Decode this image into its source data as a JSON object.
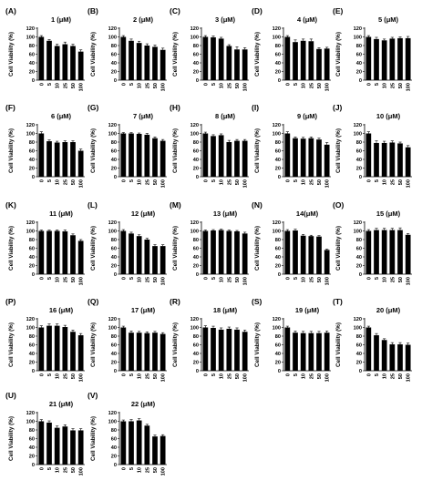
{
  "chart_data": [
    {
      "panel": "(A)",
      "type": "bar",
      "title": "1 (μM)",
      "ylabel": "Cell Viability (%)",
      "categories": [
        "0",
        "5",
        "10",
        "25",
        "50",
        "100"
      ],
      "values": [
        100,
        91,
        79,
        83,
        79,
        66
      ],
      "errors": [
        3,
        3,
        4,
        5,
        4,
        4
      ],
      "yticks": [
        "0",
        "20",
        "40",
        "60",
        "80",
        "100",
        "120"
      ],
      "ylim": [
        0,
        120
      ]
    },
    {
      "panel": "(B)",
      "type": "bar",
      "title": "2 (μM)",
      "ylabel": "Cell Viability (%)",
      "categories": [
        "0",
        "5",
        "10",
        "25",
        "50",
        "100"
      ],
      "values": [
        100,
        91,
        86,
        80,
        77,
        70
      ],
      "errors": [
        3,
        4,
        4,
        4,
        4,
        4
      ],
      "yticks": [
        "0",
        "20",
        "40",
        "60",
        "80",
        "100",
        "120"
      ],
      "ylim": [
        0,
        120
      ]
    },
    {
      "panel": "(C)",
      "type": "bar",
      "title": "3 (μM)",
      "ylabel": "Cell Viability (%)",
      "categories": [
        "0",
        "5",
        "10",
        "25",
        "50",
        "100"
      ],
      "values": [
        100,
        99,
        96,
        79,
        71,
        71
      ],
      "errors": [
        3,
        3,
        3,
        3,
        6,
        4
      ],
      "yticks": [
        "0",
        "20",
        "40",
        "60",
        "80",
        "100",
        "120"
      ],
      "ylim": [
        0,
        120
      ]
    },
    {
      "panel": "(D)",
      "type": "bar",
      "title": "4 (μM)",
      "ylabel": "Cell Viability (%)",
      "categories": [
        "0",
        "5",
        "10",
        "25",
        "50",
        "100"
      ],
      "values": [
        100,
        88,
        91,
        90,
        72,
        73
      ],
      "errors": [
        3,
        5,
        4,
        5,
        3,
        3
      ],
      "yticks": [
        "0",
        "20",
        "40",
        "60",
        "80",
        "100",
        "120"
      ],
      "ylim": [
        0,
        120
      ]
    },
    {
      "panel": "(E)",
      "type": "bar",
      "title": "5 (μM)",
      "ylabel": "Cell Viability (%)",
      "categories": [
        "0",
        "5",
        "10",
        "25",
        "50",
        "100"
      ],
      "values": [
        100,
        95,
        92,
        96,
        97,
        97
      ],
      "errors": [
        3,
        4,
        3,
        3,
        3,
        4
      ],
      "yticks": [
        "0",
        "20",
        "40",
        "60",
        "80",
        "100",
        "120"
      ],
      "ylim": [
        0,
        120
      ]
    },
    {
      "panel": "(F)",
      "type": "bar",
      "title": "6 (μM)",
      "ylabel": "Cell Viability (%)",
      "categories": [
        "0",
        "5",
        "10",
        "25",
        "50",
        "100"
      ],
      "values": [
        100,
        82,
        79,
        80,
        80,
        60
      ],
      "errors": [
        4,
        3,
        3,
        3,
        3,
        4
      ],
      "yticks": [
        "0",
        "20",
        "40",
        "60",
        "80",
        "100",
        "120"
      ],
      "ylim": [
        0,
        120
      ]
    },
    {
      "panel": "(G)",
      "type": "bar",
      "title": "7 (μM)",
      "ylabel": "Cell Viability (%)",
      "categories": [
        "0",
        "5",
        "10",
        "25",
        "50",
        "100"
      ],
      "values": [
        100,
        100,
        99,
        97,
        89,
        83
      ],
      "errors": [
        2,
        2,
        2,
        3,
        3,
        3
      ],
      "yticks": [
        "0",
        "20",
        "40",
        "60",
        "80",
        "100",
        "120"
      ],
      "ylim": [
        0,
        120
      ]
    },
    {
      "panel": "(H)",
      "type": "bar",
      "title": "8 (μM)",
      "ylabel": "Cell Viability (%)",
      "categories": [
        "0",
        "5",
        "10",
        "25",
        "50",
        "100"
      ],
      "values": [
        100,
        94,
        96,
        80,
        83,
        83
      ],
      "errors": [
        3,
        3,
        3,
        4,
        3,
        3
      ],
      "yticks": [
        "0",
        "20",
        "40",
        "60",
        "80",
        "100",
        "120"
      ],
      "ylim": [
        0,
        120
      ]
    },
    {
      "panel": "(I)",
      "type": "bar",
      "title": "9 (μM)",
      "ylabel": "Cell Viability (%)",
      "categories": [
        "0",
        "5",
        "10",
        "25",
        "50",
        "100"
      ],
      "values": [
        100,
        89,
        88,
        89,
        86,
        74
      ],
      "errors": [
        4,
        3,
        3,
        3,
        3,
        5
      ],
      "yticks": [
        "0",
        "20",
        "40",
        "60",
        "80",
        "100",
        "120"
      ],
      "ylim": [
        0,
        120
      ]
    },
    {
      "panel": "(J)",
      "type": "bar",
      "title": "10 (μM)",
      "ylabel": "Cell Viability (%)",
      "categories": [
        "0",
        "5",
        "10",
        "25",
        "50",
        "100"
      ],
      "values": [
        100,
        78,
        78,
        79,
        77,
        68
      ],
      "errors": [
        4,
        5,
        4,
        4,
        3,
        4
      ],
      "yticks": [
        "0",
        "20",
        "40",
        "60",
        "80",
        "100",
        "120"
      ],
      "ylim": [
        0,
        120
      ]
    },
    {
      "panel": "(K)",
      "type": "bar",
      "title": "11 (μM)",
      "ylabel": "Cell Viability (%)",
      "categories": [
        "0",
        "5",
        "10",
        "25",
        "50",
        "100"
      ],
      "values": [
        100,
        100,
        100,
        99,
        90,
        77
      ],
      "errors": [
        2,
        2,
        2,
        3,
        3,
        3
      ],
      "yticks": [
        "0",
        "20",
        "40",
        "60",
        "80",
        "100",
        "120"
      ],
      "ylim": [
        0,
        120
      ]
    },
    {
      "panel": "(L)",
      "type": "bar",
      "title": "12 (μM)",
      "ylabel": "Cell Viability (%)",
      "categories": [
        "0",
        "5",
        "10",
        "25",
        "50",
        "100"
      ],
      "values": [
        100,
        94,
        88,
        80,
        65,
        65
      ],
      "errors": [
        3,
        3,
        3,
        3,
        3,
        3
      ],
      "yticks": [
        "0",
        "20",
        "40",
        "60",
        "80",
        "100",
        "120"
      ],
      "ylim": [
        0,
        120
      ]
    },
    {
      "panel": "(M)",
      "type": "bar",
      "title": "13 (μM)",
      "ylabel": "Cell Viability (%)",
      "categories": [
        "0",
        "5",
        "10",
        "25",
        "50",
        "100"
      ],
      "values": [
        100,
        101,
        102,
        100,
        99,
        94
      ],
      "errors": [
        2,
        2,
        2,
        2,
        2,
        3
      ],
      "yticks": [
        "0",
        "20",
        "40",
        "60",
        "80",
        "100",
        "120"
      ],
      "ylim": [
        0,
        120
      ]
    },
    {
      "panel": "(N)",
      "type": "bar",
      "title": "14(μM)",
      "ylabel": "Cell Viability (%)",
      "categories": [
        "0",
        "5",
        "10",
        "25",
        "50",
        "100"
      ],
      "values": [
        100,
        101,
        89,
        88,
        87,
        56
      ],
      "errors": [
        3,
        3,
        3,
        2,
        2,
        2
      ],
      "yticks": [
        "0",
        "20",
        "40",
        "60",
        "80",
        "100",
        "120"
      ],
      "ylim": [
        0,
        120
      ]
    },
    {
      "panel": "(O)",
      "type": "bar",
      "title": "15 (μM)",
      "ylabel": "Cell Viability (%)",
      "categories": [
        "0",
        "5",
        "10",
        "25",
        "50",
        "100"
      ],
      "values": [
        100,
        102,
        102,
        102,
        102,
        91
      ],
      "errors": [
        3,
        4,
        4,
        4,
        5,
        3
      ],
      "yticks": [
        "0",
        "20",
        "40",
        "60",
        "80",
        "100",
        "120"
      ],
      "ylim": [
        0,
        120
      ]
    },
    {
      "panel": "(P)",
      "type": "bar",
      "title": "16 (μM)",
      "ylabel": "Cell Viability (%)",
      "categories": [
        "0",
        "5",
        "10",
        "25",
        "50",
        "100"
      ],
      "values": [
        100,
        104,
        104,
        101,
        90,
        82
      ],
      "errors": [
        4,
        4,
        4,
        4,
        4,
        4
      ],
      "yticks": [
        "0",
        "20",
        "40",
        "60",
        "80",
        "100",
        "120"
      ],
      "ylim": [
        0,
        120
      ]
    },
    {
      "panel": "(Q)",
      "type": "bar",
      "title": "17 (μM)",
      "ylabel": "Cell Viability (%)",
      "categories": [
        "0",
        "5",
        "10",
        "25",
        "50",
        "100"
      ],
      "values": [
        100,
        88,
        88,
        87,
        88,
        85
      ],
      "errors": [
        3,
        4,
        3,
        3,
        3,
        3
      ],
      "yticks": [
        "0",
        "20",
        "40",
        "60",
        "80",
        "100",
        "120"
      ],
      "ylim": [
        0,
        120
      ]
    },
    {
      "panel": "(R)",
      "type": "bar",
      "title": "18 (μM)",
      "ylabel": "Cell Viability (%)",
      "categories": [
        "0",
        "5",
        "10",
        "25",
        "50",
        "100"
      ],
      "values": [
        100,
        99,
        95,
        97,
        95,
        90
      ],
      "errors": [
        4,
        4,
        4,
        4,
        4,
        4
      ],
      "yticks": [
        "0",
        "20",
        "40",
        "60",
        "80",
        "100",
        "120"
      ],
      "ylim": [
        0,
        120
      ]
    },
    {
      "panel": "(S)",
      "type": "bar",
      "title": "19 (μM)",
      "ylabel": "Cell Viability (%)",
      "categories": [
        "0",
        "5",
        "10",
        "25",
        "50",
        "100"
      ],
      "values": [
        100,
        88,
        87,
        87,
        87,
        88
      ],
      "errors": [
        3,
        4,
        4,
        4,
        4,
        4
      ],
      "yticks": [
        "0",
        "20",
        "40",
        "60",
        "80",
        "100",
        "120"
      ],
      "ylim": [
        0,
        120
      ]
    },
    {
      "panel": "(T)",
      "type": "bar",
      "title": "20 (μM)",
      "ylabel": "Cell Viability (%)",
      "categories": [
        "0",
        "5",
        "10",
        "25",
        "50",
        "100"
      ],
      "values": [
        100,
        82,
        71,
        61,
        61,
        60
      ],
      "errors": [
        3,
        4,
        3,
        4,
        4,
        4
      ],
      "yticks": [
        "0",
        "20",
        "40",
        "60",
        "80",
        "100",
        "120"
      ],
      "ylim": [
        0,
        120
      ]
    },
    {
      "panel": "(U)",
      "type": "bar",
      "title": "21 (μM)",
      "ylabel": "Cell Viability (%)",
      "categories": [
        "0",
        "5",
        "10",
        "25",
        "50",
        "100"
      ],
      "values": [
        100,
        97,
        85,
        88,
        79,
        79
      ],
      "errors": [
        4,
        4,
        4,
        4,
        4,
        4
      ],
      "yticks": [
        "0",
        "20",
        "40",
        "60",
        "80",
        "100",
        "120"
      ],
      "ylim": [
        0,
        120
      ]
    },
    {
      "panel": "(V)",
      "type": "bar",
      "title": "22 (μM)",
      "ylabel": "Cell Viability (%)",
      "categories": [
        "0",
        "5",
        "10",
        "25",
        "50",
        "100"
      ],
      "values": [
        100,
        100,
        102,
        90,
        65,
        66
      ],
      "errors": [
        3,
        4,
        4,
        3,
        3,
        3
      ],
      "yticks": [
        "0",
        "20",
        "40",
        "60",
        "80",
        "100",
        "120"
      ],
      "ylim": [
        0,
        120
      ]
    }
  ]
}
